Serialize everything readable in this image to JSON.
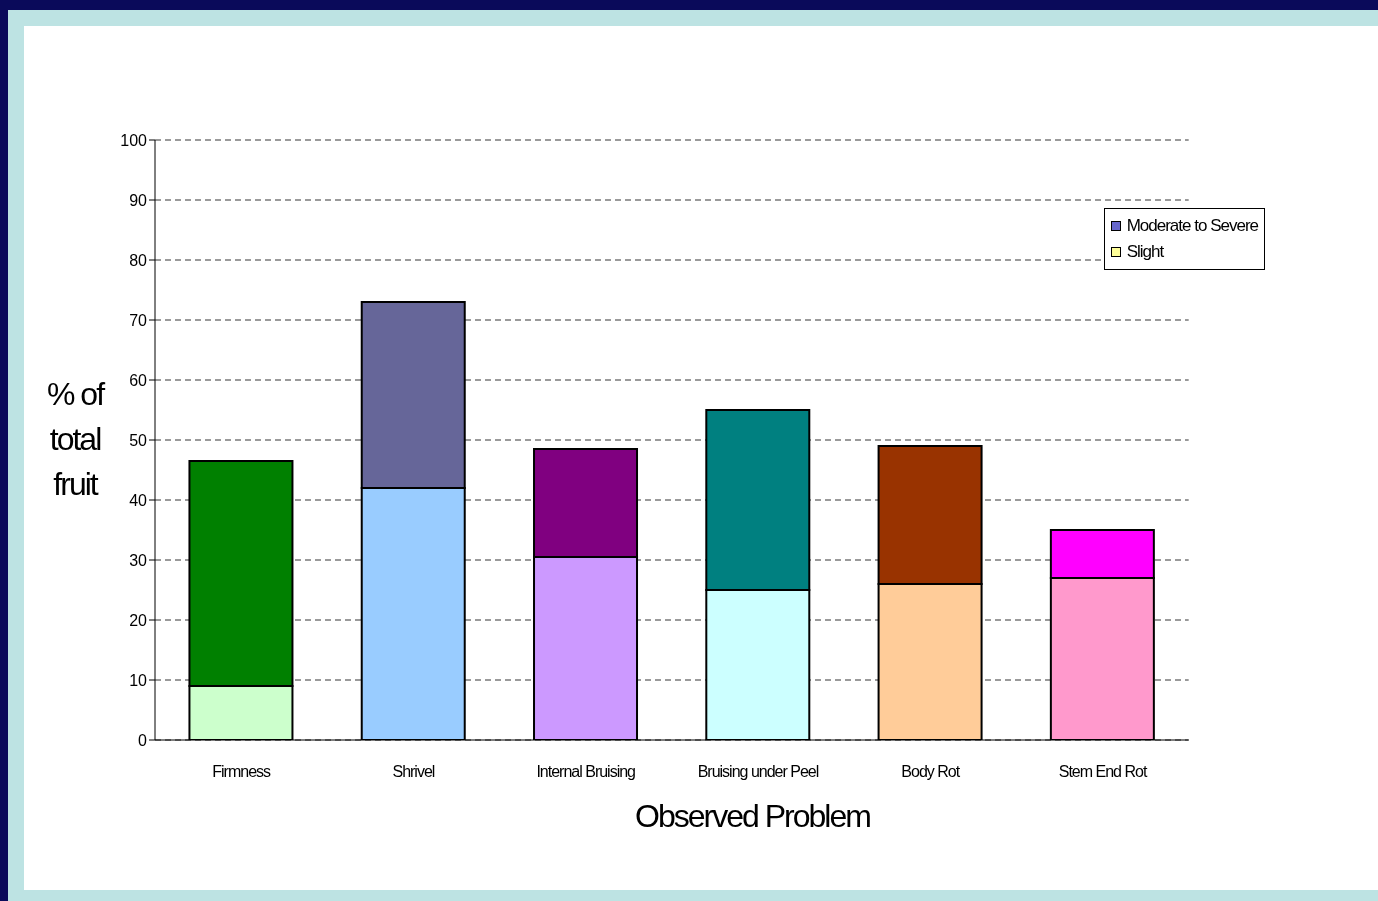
{
  "chart_data": {
    "type": "bar",
    "stacked": true,
    "xlabel": "Observed Problem",
    "ylabel": "% of total fruit",
    "categories": [
      "Firmness",
      "Shrivel",
      "Internal Bruising",
      "Bruising under Peel",
      "Body Rot",
      "Stem End Rot"
    ],
    "series": [
      {
        "name": "Slight",
        "color": "#ffff99",
        "colors": [
          "#ccffcc",
          "#99ccff",
          "#cc99ff",
          "#ccffff",
          "#ffcc99",
          "#ff99cc"
        ],
        "values": [
          9,
          42,
          30.5,
          25,
          26,
          27
        ]
      },
      {
        "name": "Moderate to Severe",
        "color": "#6666cc",
        "colors": [
          "#008000",
          "#666699",
          "#800080",
          "#008080",
          "#993300",
          "#ff00ff"
        ],
        "values": [
          37.5,
          31,
          18,
          30,
          23,
          8
        ]
      }
    ],
    "ylim": [
      0,
      100
    ],
    "yticks": [
      0,
      10,
      20,
      30,
      40,
      50,
      60,
      70,
      80,
      90,
      100
    ],
    "grid": "y",
    "legend": "top right"
  }
}
